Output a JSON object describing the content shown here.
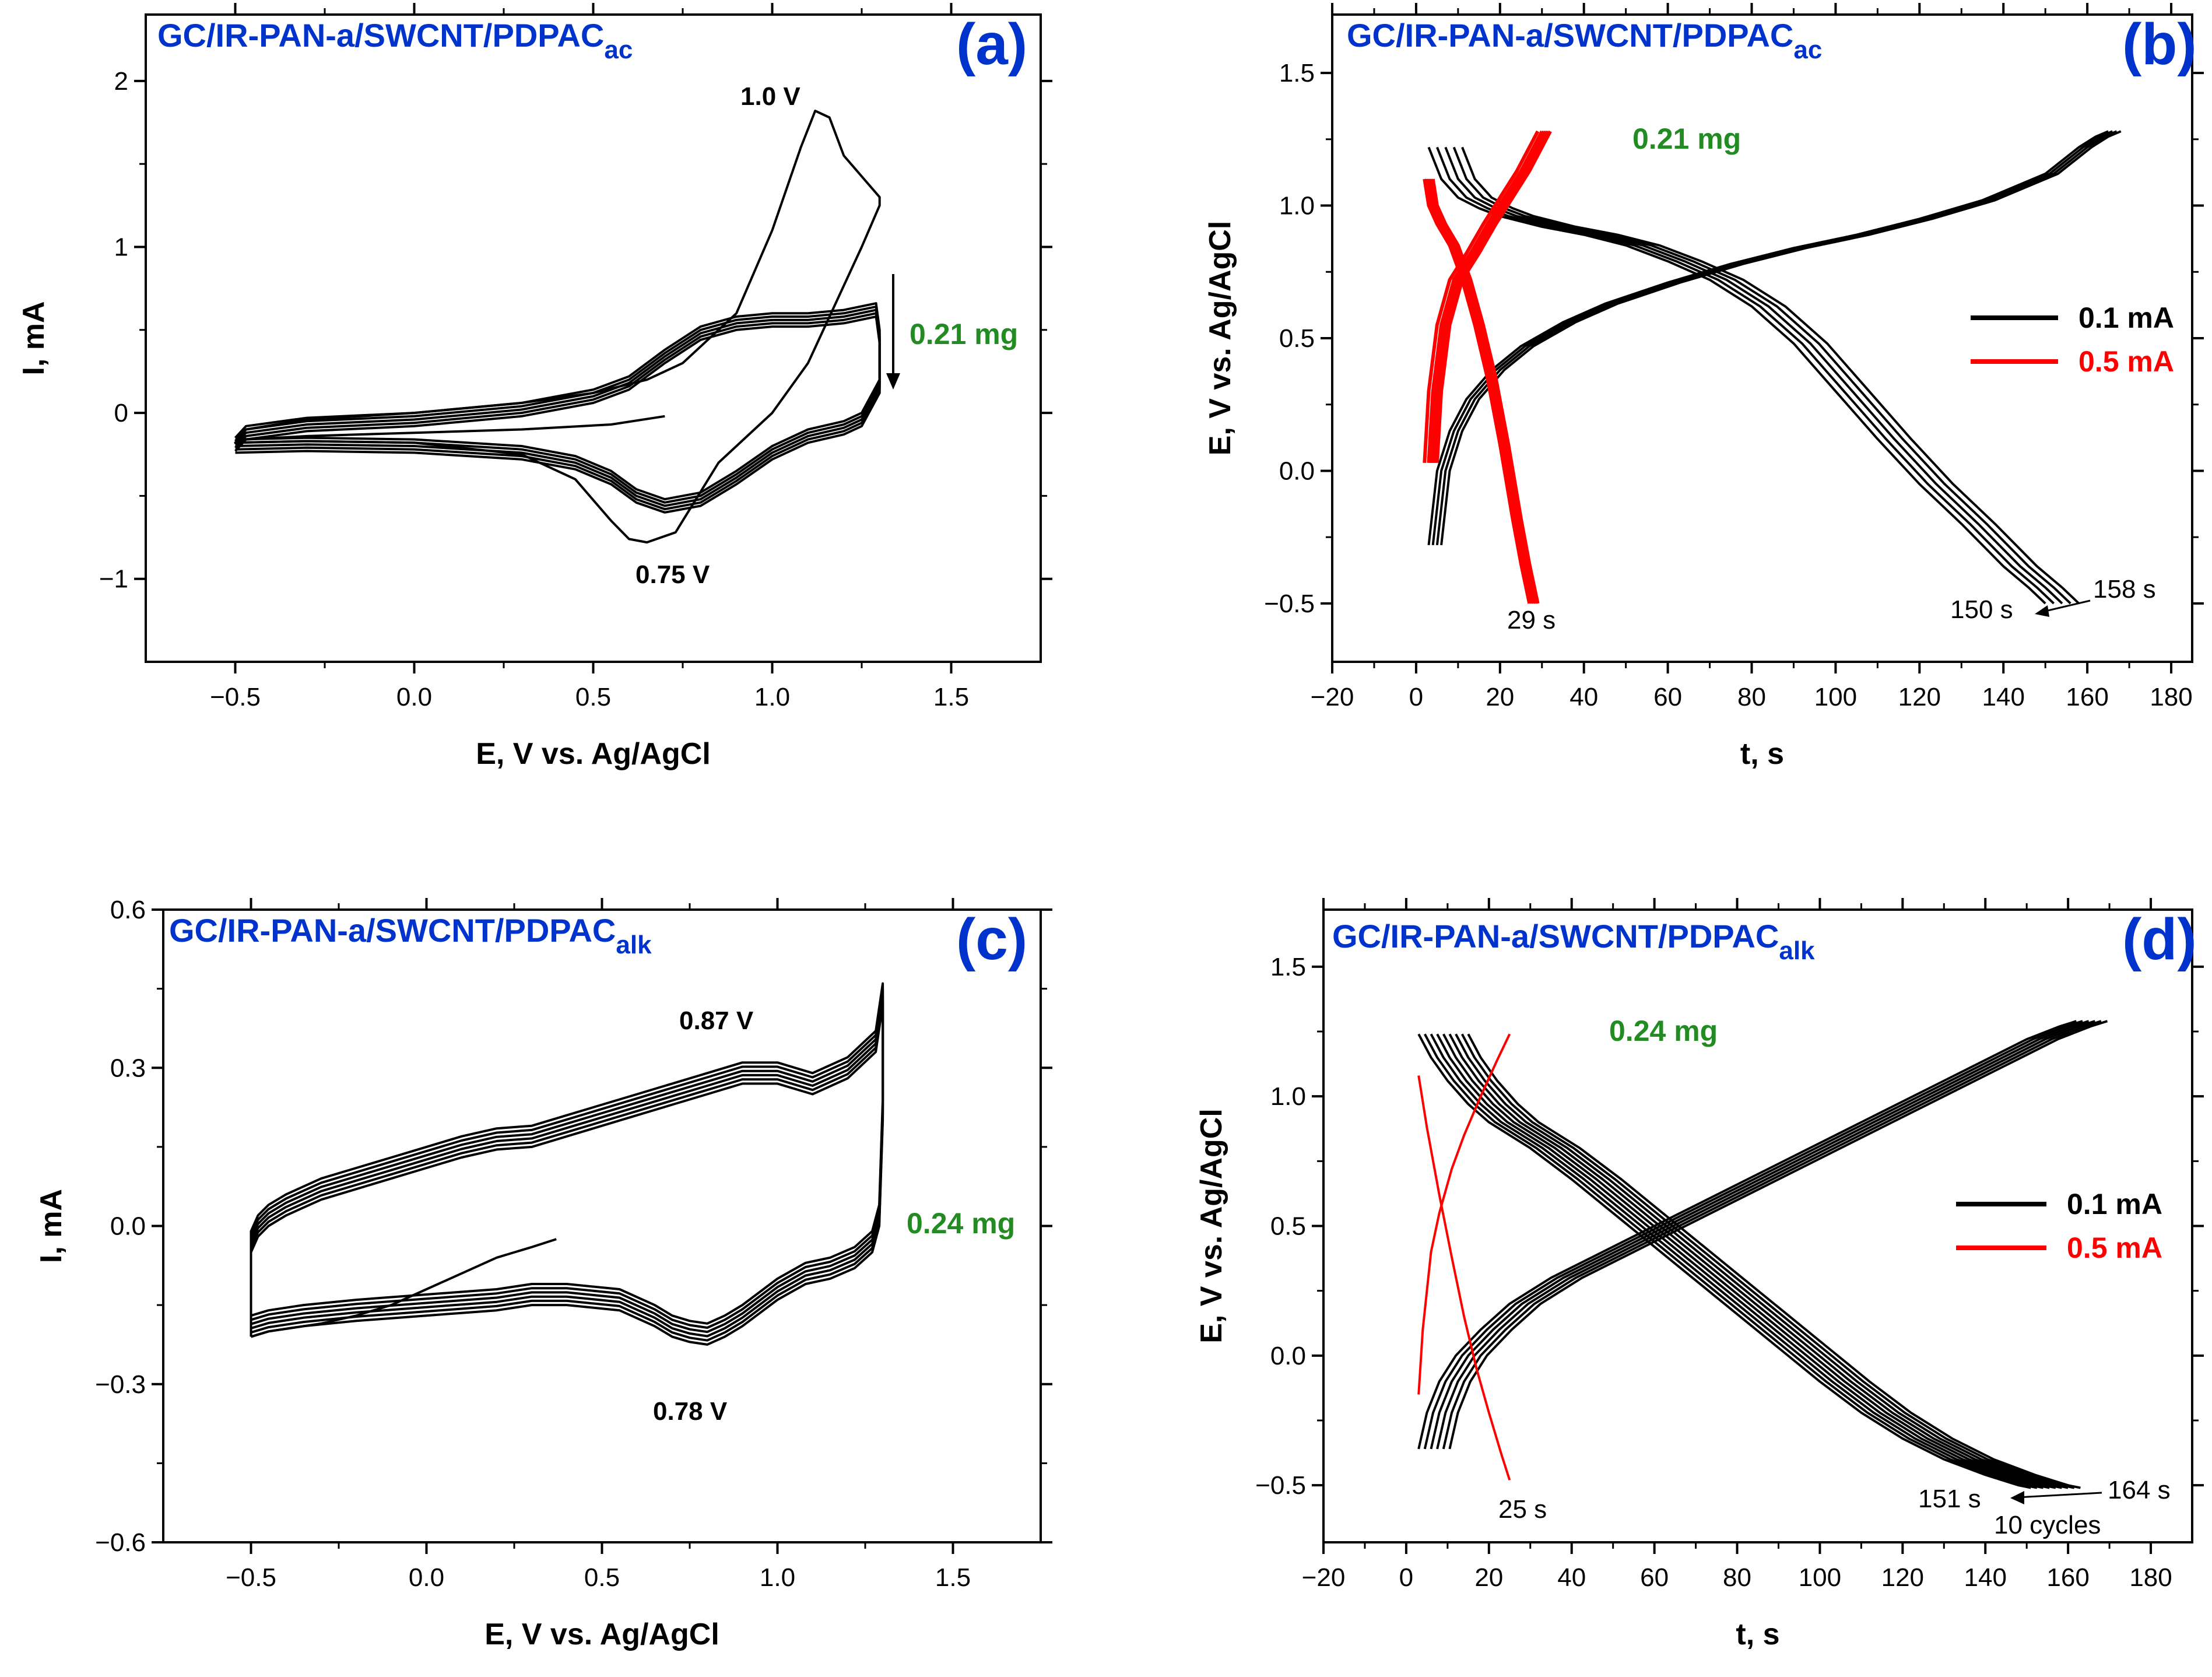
{
  "chart_data": [
    {
      "type": "line",
      "panel_label": "(a)",
      "title": "GC/IR-PAN-a/SWCNT/PDPAC",
      "title_sub": "ac",
      "xlabel": "E, V vs. Ag/AgCl",
      "ylabel": "I, mA",
      "xlim": [
        -0.75,
        1.75
      ],
      "ylim": [
        -1.5,
        2.4
      ],
      "xticks": [
        -0.5,
        0.0,
        0.5,
        1.0,
        1.5
      ],
      "xticklabels": [
        "−0.5",
        "0.0",
        "0.5",
        "1.0",
        "1.5"
      ],
      "yticks": [
        -1,
        0,
        1,
        2
      ],
      "yticklabels": [
        "−1",
        "0",
        "1",
        "2"
      ],
      "annotations": {
        "peak_anodic": "1.0 V",
        "peak_cathodic": "0.75 V",
        "mass": "0.21 mg"
      },
      "series": [
        {
          "name": "first cycle",
          "color": "#000000",
          "x": [
            0.7,
            0.55,
            0.3,
            0.0,
            -0.3,
            -0.47,
            -0.5,
            -0.47,
            -0.3,
            0.0,
            0.3,
            0.5,
            0.65,
            0.75,
            0.9,
            1.0,
            1.08,
            1.12,
            1.16,
            1.2,
            1.3,
            1.3,
            1.25,
            1.1,
            1.0,
            0.85,
            0.73,
            0.65,
            0.6,
            0.55,
            0.45,
            0.3,
            0.0,
            -0.3,
            -0.5
          ],
          "y": [
            -0.02,
            -0.07,
            -0.1,
            -0.12,
            -0.14,
            -0.16,
            -0.18,
            -0.1,
            -0.04,
            0.0,
            0.06,
            0.12,
            0.2,
            0.3,
            0.6,
            1.1,
            1.6,
            1.82,
            1.78,
            1.55,
            1.3,
            1.25,
            1.0,
            0.3,
            0.0,
            -0.3,
            -0.72,
            -0.78,
            -0.76,
            -0.65,
            -0.4,
            -0.25,
            -0.18,
            -0.17,
            -0.18
          ]
        },
        {
          "name": "cycles 2-10",
          "color": "#000000",
          "band_y": [
            0.0,
            -0.02,
            -0.04,
            -0.06,
            -0.08
          ],
          "x": [
            -0.5,
            -0.47,
            -0.3,
            0.0,
            0.3,
            0.5,
            0.6,
            0.7,
            0.8,
            0.9,
            1.0,
            1.1,
            1.2,
            1.29,
            1.3,
            1.3,
            1.25,
            1.2,
            1.1,
            1.0,
            0.9,
            0.8,
            0.7,
            0.62,
            0.55,
            0.45,
            0.3,
            0.0,
            -0.3,
            -0.5
          ],
          "y": [
            -0.15,
            -0.08,
            -0.03,
            0.0,
            0.06,
            0.14,
            0.22,
            0.38,
            0.52,
            0.58,
            0.6,
            0.6,
            0.62,
            0.66,
            0.5,
            0.2,
            0.0,
            -0.05,
            -0.1,
            -0.2,
            -0.35,
            -0.48,
            -0.52,
            -0.46,
            -0.35,
            -0.26,
            -0.2,
            -0.16,
            -0.15,
            -0.16
          ]
        }
      ]
    },
    {
      "type": "line",
      "panel_label": "(b)",
      "title": "GC/IR-PAN-a/SWCNT/PDPAC",
      "title_sub": "ac",
      "xlabel": "t, s",
      "ylabel": "E, V vs. Ag/AgCl",
      "xlim": [
        -20,
        185
      ],
      "ylim": [
        -0.72,
        1.72
      ],
      "xticks": [
        -20,
        0,
        20,
        40,
        60,
        80,
        100,
        120,
        140,
        160,
        180
      ],
      "xticklabels": [
        "−20",
        "0",
        "20",
        "40",
        "60",
        "80",
        "100",
        "120",
        "140",
        "160",
        "180"
      ],
      "yticks": [
        -0.5,
        0.0,
        0.5,
        1.0,
        1.5
      ],
      "yticklabels": [
        "−0.5",
        "0.0",
        "0.5",
        "1.0",
        "1.5"
      ],
      "legend": {
        "position": "right",
        "entries": [
          {
            "label": "0.1 mA",
            "color": "#000000"
          },
          {
            "label": "0.5 mA",
            "color": "#ff0000"
          }
        ]
      },
      "annotations": {
        "mass": "0.21 mg",
        "t_fast": "29 s",
        "t_slow_start": "150 s",
        "t_slow_end": "158 s"
      },
      "series": [
        {
          "name": "0.1 mA charge",
          "color": "#000000",
          "x": [
            3,
            5,
            8,
            12,
            18,
            25,
            35,
            45,
            60,
            75,
            90,
            105,
            120,
            135,
            150,
            158,
            162,
            165
          ],
          "y": [
            -0.28,
            0.0,
            0.15,
            0.27,
            0.38,
            0.47,
            0.56,
            0.63,
            0.71,
            0.78,
            0.84,
            0.89,
            0.95,
            1.02,
            1.12,
            1.22,
            1.26,
            1.28
          ],
          "shift_x": [
            0,
            1,
            2,
            3
          ]
        },
        {
          "name": "0.1 mA discharge",
          "color": "#000000",
          "x": [
            3,
            6,
            10,
            15,
            20,
            30,
            40,
            50,
            60,
            70,
            80,
            90,
            100,
            110,
            120,
            130,
            140,
            146,
            150
          ],
          "y": [
            1.22,
            1.1,
            1.03,
            0.99,
            0.96,
            0.92,
            0.89,
            0.85,
            0.79,
            0.72,
            0.62,
            0.48,
            0.3,
            0.12,
            -0.05,
            -0.2,
            -0.36,
            -0.44,
            -0.5
          ],
          "shift_x": [
            0,
            2,
            4,
            6,
            8
          ]
        },
        {
          "name": "0.5 mA charge",
          "color": "#ff0000",
          "x": [
            2,
            3,
            5,
            8,
            12,
            16,
            20,
            24,
            27,
            29
          ],
          "y": [
            0.03,
            0.3,
            0.55,
            0.72,
            0.82,
            0.93,
            1.03,
            1.13,
            1.22,
            1.28
          ],
          "shift_x": [
            0,
            1,
            1.5,
            2,
            2.5,
            3
          ]
        },
        {
          "name": "0.5 mA discharge",
          "color": "#ff0000",
          "x": [
            2,
            3,
            5,
            8,
            11,
            14,
            17,
            20,
            23,
            25,
            27
          ],
          "y": [
            1.1,
            1.0,
            0.93,
            0.85,
            0.72,
            0.55,
            0.35,
            0.1,
            -0.18,
            -0.35,
            -0.5
          ],
          "shift_x": [
            0,
            0.5,
            1,
            1.5,
            2
          ]
        }
      ]
    },
    {
      "type": "line",
      "panel_label": "(c)",
      "title": "GC/IR-PAN-a/SWCNT/PDPAC",
      "title_sub": "alk",
      "xlabel": "E, V vs. Ag/AgCl",
      "ylabel": "I, mA",
      "xlim": [
        -0.75,
        1.75
      ],
      "ylim": [
        -0.6,
        0.6
      ],
      "xticks": [
        -0.5,
        0.0,
        0.5,
        1.0,
        1.5
      ],
      "xticklabels": [
        "−0.5",
        "0.0",
        "0.5",
        "1.0",
        "1.5"
      ],
      "yticks": [
        -0.6,
        -0.3,
        0.0,
        0.3,
        0.6
      ],
      "yticklabels": [
        "−0.6",
        "−0.3",
        "0.0",
        "0.3",
        "0.6"
      ],
      "annotations": {
        "peak_anodic": "0.87 V",
        "peak_cathodic": "0.78 V",
        "mass": "0.24 mg"
      },
      "series": [
        {
          "name": "initial scan",
          "color": "#000000",
          "x": [
            0.37,
            0.3,
            0.2,
            0.1,
            0.0,
            -0.1,
            -0.2,
            -0.3,
            -0.45,
            -0.5
          ],
          "y": [
            -0.025,
            -0.04,
            -0.06,
            -0.09,
            -0.12,
            -0.15,
            -0.17,
            -0.185,
            -0.2,
            -0.21
          ]
        },
        {
          "name": "cycles",
          "color": "#000000",
          "band_y": [
            0.0,
            0.008,
            0.016,
            0.024,
            0.032,
            0.04
          ],
          "x": [
            -0.5,
            -0.5,
            -0.48,
            -0.45,
            -0.4,
            -0.3,
            -0.2,
            -0.1,
            0.0,
            0.1,
            0.2,
            0.3,
            0.4,
            0.5,
            0.6,
            0.7,
            0.8,
            0.9,
            1.0,
            1.1,
            1.2,
            1.28,
            1.3,
            1.3,
            1.29,
            1.27,
            1.22,
            1.15,
            1.08,
            1.0,
            0.9,
            0.85,
            0.8,
            0.75,
            0.7,
            0.65,
            0.55,
            0.4,
            0.3,
            0.2,
            0.1,
            0.0,
            -0.2,
            -0.35,
            -0.45,
            -0.5
          ],
          "y": [
            -0.21,
            -0.05,
            -0.02,
            0.0,
            0.02,
            0.05,
            0.07,
            0.09,
            0.11,
            0.13,
            0.145,
            0.15,
            0.17,
            0.19,
            0.21,
            0.23,
            0.25,
            0.27,
            0.27,
            0.25,
            0.28,
            0.33,
            0.42,
            0.2,
            0.0,
            -0.05,
            -0.08,
            -0.1,
            -0.11,
            -0.14,
            -0.19,
            -0.21,
            -0.225,
            -0.22,
            -0.21,
            -0.19,
            -0.16,
            -0.15,
            -0.15,
            -0.16,
            -0.165,
            -0.17,
            -0.18,
            -0.19,
            -0.2,
            -0.21
          ]
        }
      ]
    },
    {
      "type": "line",
      "panel_label": "(d)",
      "title": "GC/IR-PAN-a/SWCNT/PDPAC",
      "title_sub": "alk",
      "xlabel": "t, s",
      "ylabel": "E, V vs. Ag/AgCl",
      "xlim": [
        -20,
        190
      ],
      "ylim": [
        -0.72,
        1.72
      ],
      "xticks": [
        -20,
        0,
        20,
        40,
        60,
        80,
        100,
        120,
        140,
        160,
        180
      ],
      "xticklabels": [
        "−20",
        "0",
        "20",
        "40",
        "60",
        "80",
        "100",
        "120",
        "140",
        "160",
        "180"
      ],
      "yticks": [
        -0.5,
        0.0,
        0.5,
        1.0,
        1.5
      ],
      "yticklabels": [
        "−0.5",
        "0.0",
        "0.5",
        "1.0",
        "1.5"
      ],
      "legend": {
        "position": "right",
        "entries": [
          {
            "label": "0.1 mA",
            "color": "#000000"
          },
          {
            "label": "0.5 mA",
            "color": "#ff0000"
          }
        ]
      },
      "annotations": {
        "mass": "0.24 mg",
        "t_fast": "25 s",
        "t_slow_start": "151 s",
        "t_slow_end": "164 s",
        "cycles": "10 cycles"
      },
      "series": [
        {
          "name": "0.1 mA charge",
          "color": "#000000",
          "x": [
            3,
            5,
            8,
            12,
            18,
            25,
            35,
            45,
            55,
            65,
            80,
            95,
            110,
            125,
            140,
            150,
            158,
            162
          ],
          "y": [
            -0.36,
            -0.22,
            -0.1,
            0.0,
            0.1,
            0.2,
            0.3,
            0.38,
            0.46,
            0.54,
            0.66,
            0.78,
            0.9,
            1.02,
            1.14,
            1.22,
            1.27,
            1.29
          ],
          "shift_x": [
            0,
            1.5,
            3,
            4.5,
            6,
            7.5
          ]
        },
        {
          "name": "0.1 mA discharge",
          "color": "#000000",
          "x": [
            3,
            6,
            10,
            15,
            20,
            30,
            40,
            50,
            60,
            70,
            80,
            90,
            100,
            110,
            120,
            130,
            140,
            148,
            151
          ],
          "y": [
            1.24,
            1.15,
            1.06,
            0.97,
            0.9,
            0.8,
            0.68,
            0.55,
            0.42,
            0.29,
            0.16,
            0.03,
            -0.1,
            -0.22,
            -0.32,
            -0.4,
            -0.46,
            -0.5,
            -0.51
          ],
          "shift_x": [
            0,
            1.5,
            3,
            4.5,
            6,
            7.5,
            9,
            10.5,
            12
          ]
        },
        {
          "name": "0.5 mA charge",
          "color": "#ff0000",
          "x": [
            3,
            4,
            5,
            6,
            8,
            11,
            14,
            18,
            22,
            25
          ],
          "y": [
            -0.15,
            0.1,
            0.25,
            0.4,
            0.55,
            0.72,
            0.85,
            1.0,
            1.14,
            1.24
          ],
          "shift_x": [
            0
          ]
        },
        {
          "name": "0.5 mA discharge",
          "color": "#ff0000",
          "x": [
            3,
            5,
            8,
            11,
            14,
            17,
            20,
            23,
            25
          ],
          "y": [
            1.08,
            0.88,
            0.62,
            0.38,
            0.15,
            -0.05,
            -0.22,
            -0.38,
            -0.48
          ],
          "shift_x": [
            0
          ]
        }
      ]
    }
  ]
}
